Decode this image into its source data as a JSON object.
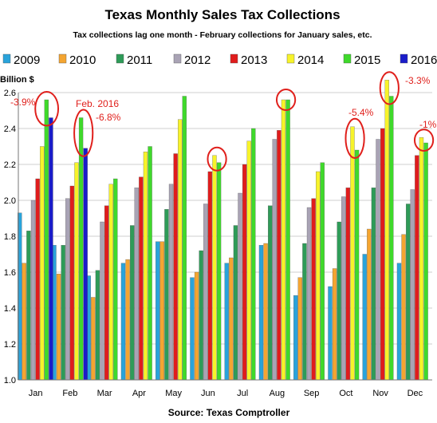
{
  "chart_data": {
    "type": "bar",
    "title": "Texas Monthly Sales Tax Collections",
    "subtitle": "Tax collections lag one month - February collections for January sales, etc.",
    "ylabel": "Billion $",
    "xlabel": "",
    "source": "Source: Texas Comptroller",
    "ylim": [
      1.0,
      2.6
    ],
    "yticks": [
      "1.0",
      "1.2",
      "1.4",
      "1.6",
      "1.8",
      "2.0",
      "2.2",
      "2.4",
      "2.6"
    ],
    "grid": true,
    "legend_position": "top",
    "categories": [
      "Jan",
      "Feb",
      "Mar",
      "Apr",
      "May",
      "Jun",
      "Jul",
      "Aug",
      "Sep",
      "Oct",
      "Nov",
      "Dec"
    ],
    "series": [
      {
        "name": "2009",
        "color": "#29a3db",
        "values": [
          1.93,
          1.75,
          1.58,
          1.65,
          1.77,
          1.57,
          1.65,
          1.75,
          1.47,
          1.52,
          1.7,
          1.65
        ]
      },
      {
        "name": "2010",
        "color": "#f4a531",
        "values": [
          1.65,
          1.59,
          1.46,
          1.67,
          1.77,
          1.6,
          1.68,
          1.76,
          1.57,
          1.62,
          1.84,
          1.81
        ]
      },
      {
        "name": "2011",
        "color": "#2e9b58",
        "values": [
          1.83,
          1.75,
          1.61,
          1.86,
          1.95,
          1.72,
          1.86,
          1.97,
          1.76,
          1.88,
          2.07,
          1.98
        ]
      },
      {
        "name": "2012",
        "color": "#a9a3b5",
        "values": [
          2.0,
          2.01,
          1.88,
          2.07,
          2.09,
          1.98,
          2.04,
          2.34,
          1.96,
          2.02,
          2.34,
          2.06
        ]
      },
      {
        "name": "2013",
        "color": "#e01c1c",
        "values": [
          2.12,
          2.08,
          1.97,
          2.13,
          2.26,
          2.16,
          2.2,
          2.39,
          2.01,
          2.07,
          2.4,
          2.25
        ]
      },
      {
        "name": "2014",
        "color": "#f7f32a",
        "values": [
          2.3,
          2.21,
          2.09,
          2.27,
          2.45,
          2.25,
          2.33,
          2.56,
          2.16,
          2.41,
          2.67,
          2.35
        ]
      },
      {
        "name": "2015",
        "color": "#3fd92b",
        "values": [
          2.56,
          2.46,
          2.12,
          2.3,
          2.58,
          2.21,
          2.4,
          2.56,
          2.21,
          2.28,
          2.58,
          2.32
        ]
      },
      {
        "name": "2016",
        "color": "#1a1cc9",
        "values": [
          2.46,
          2.29,
          null,
          null,
          null,
          null,
          null,
          null,
          null,
          null,
          null,
          null
        ]
      }
    ],
    "annotations": [
      {
        "text": "-3.9%",
        "month": "Jan"
      },
      {
        "text": "Feb. 2016",
        "month": "Feb"
      },
      {
        "text": "-6.8%",
        "month": "Feb"
      },
      {
        "text": "-5.4%",
        "month": "Oct"
      },
      {
        "text": "-3.3%",
        "month": "Nov"
      },
      {
        "text": "-1%",
        "month": "Dec"
      }
    ],
    "highlight_color": "#e0201c"
  }
}
